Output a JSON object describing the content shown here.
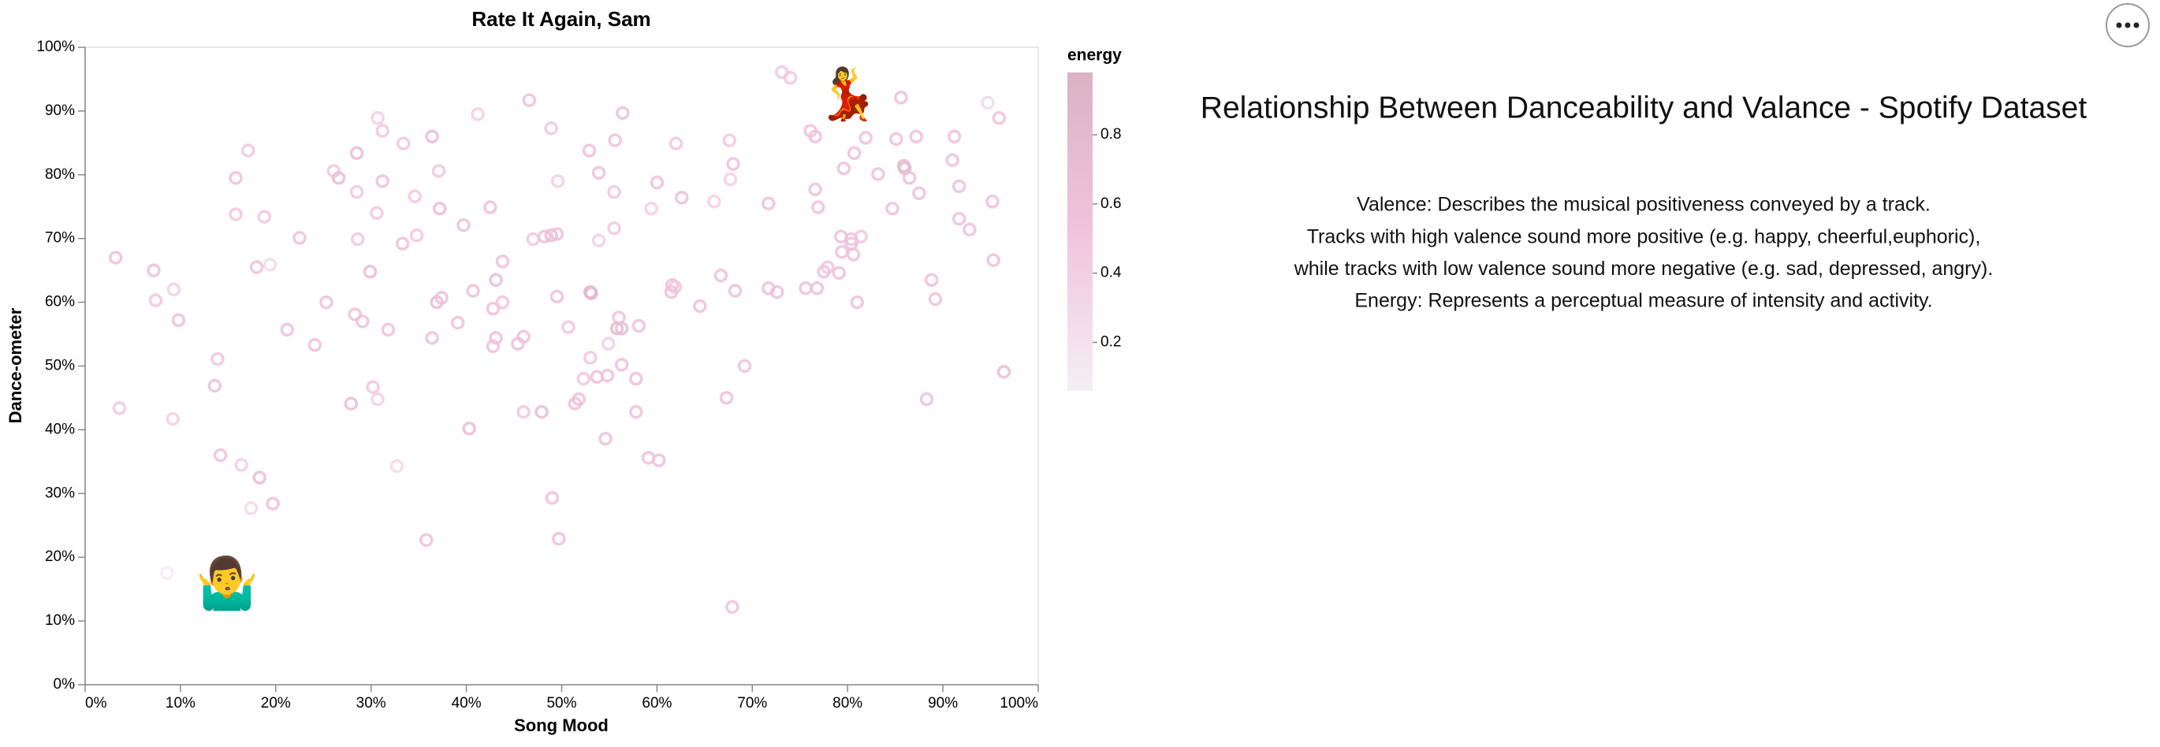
{
  "chart_data": {
    "type": "scatter",
    "title": "Rate It Again, Sam",
    "x_label": "Song Mood",
    "y_label": "Dance-ometer",
    "xlim": [
      0,
      100
    ],
    "ylim": [
      0,
      100
    ],
    "xticks": [
      {
        "value": 0,
        "label": "0%"
      },
      {
        "value": 10,
        "label": "10%"
      },
      {
        "value": 20,
        "label": "20%"
      },
      {
        "value": 30,
        "label": "30%"
      },
      {
        "value": 40,
        "label": "40%"
      },
      {
        "value": 50,
        "label": "50%"
      },
      {
        "value": 60,
        "label": "60%"
      },
      {
        "value": 70,
        "label": "70%"
      },
      {
        "value": 80,
        "label": "80%"
      },
      {
        "value": 90,
        "label": "90%"
      },
      {
        "value": 100,
        "label": "100%"
      }
    ],
    "yticks": [
      {
        "value": 0,
        "label": "0%"
      },
      {
        "value": 10,
        "label": "10%"
      },
      {
        "value": 20,
        "label": "20%"
      },
      {
        "value": 30,
        "label": "30%"
      },
      {
        "value": 40,
        "label": "40%"
      },
      {
        "value": 50,
        "label": "50%"
      },
      {
        "value": 60,
        "label": "60%"
      },
      {
        "value": 70,
        "label": "70%"
      },
      {
        "value": 80,
        "label": "80%"
      },
      {
        "value": 90,
        "label": "90%"
      },
      {
        "value": 100,
        "label": "100%"
      }
    ],
    "grid": false,
    "x": [
      3.2,
      3.6,
      7.2,
      7.4,
      9.3,
      9.8,
      9.2,
      8.6,
      13.9,
      13.6,
      14.2,
      15.8,
      15.8,
      17.1,
      18.8,
      18.0,
      19.4,
      16.4,
      18.3,
      17.4,
      19.7,
      21.2,
      22.5,
      24.1,
      25.3,
      26.1,
      26.6,
      28.5,
      28.5,
      28.6,
      28.3,
      29.1,
      27.9,
      29.9,
      30.7,
      31.2,
      31.2,
      30.6,
      31.8,
      30.2,
      30.7,
      32.7,
      33.4,
      33.3,
      34.6,
      34.8,
      36.4,
      37.1,
      37.2,
      37.4,
      36.9,
      36.4,
      35.8,
      39.1,
      39.7,
      41.2,
      40.7,
      40.3,
      42.5,
      43.1,
      42.8,
      43.1,
      42.8,
      43.8,
      43.8,
      45.4,
      46.0,
      46.0,
      46.6,
      47.0,
      47.9,
      48.2,
      48.9,
      48.9,
      49.5,
      49.6,
      49.5,
      49.0,
      49.7,
      50.7,
      51.4,
      51.8,
      52.3,
      52.9,
      53.0,
      53.1,
      53.0,
      53.9,
      53.9,
      53.7,
      54.8,
      54.6,
      54.9,
      55.5,
      55.6,
      55.5,
      56.0,
      55.8,
      56.3,
      56.3,
      56.4,
      57.8,
      58.1,
      57.8,
      59.1,
      60.2,
      59.4,
      60.0,
      61.5,
      61.6,
      61.9,
      62.0,
      62.6,
      64.5,
      66.0,
      66.7,
      67.3,
      67.6,
      67.7,
      67.9,
      68.0,
      68.2,
      69.2,
      71.7,
      71.7,
      72.6,
      73.1,
      74.0,
      75.6,
      76.1,
      76.6,
      76.8,
      76.6,
      76.9,
      77.5,
      77.9,
      79.1,
      79.3,
      79.6,
      79.4,
      80.4,
      80.6,
      80.7,
      80.4,
      81.0,
      81.4,
      81.9,
      83.2,
      84.7,
      85.1,
      85.6,
      85.9,
      86.0,
      86.5,
      87.2,
      87.5,
      88.3,
      88.8,
      89.2,
      91.0,
      91.2,
      91.7,
      91.7,
      92.8,
      94.7,
      95.2,
      95.3,
      95.9,
      96.4
    ],
    "values": [
      67.0,
      43.4,
      65.0,
      60.3,
      62.0,
      57.2,
      41.7,
      17.5,
      51.1,
      46.9,
      36.0,
      79.5,
      73.8,
      83.8,
      73.4,
      65.5,
      65.9,
      34.5,
      32.5,
      27.7,
      28.4,
      55.7,
      70.1,
      53.3,
      60.0,
      80.6,
      79.5,
      83.4,
      77.3,
      69.9,
      58.1,
      57.0,
      44.1,
      64.8,
      88.9,
      86.9,
      79.0,
      74.0,
      55.7,
      46.7,
      44.8,
      34.3,
      84.9,
      69.2,
      76.6,
      70.5,
      86.0,
      80.6,
      74.7,
      60.7,
      60.0,
      54.4,
      22.7,
      56.8,
      72.1,
      89.5,
      61.8,
      40.2,
      74.9,
      63.5,
      59.0,
      54.4,
      53.1,
      66.4,
      60.0,
      53.5,
      54.6,
      42.8,
      91.7,
      69.9,
      42.8,
      70.3,
      87.3,
      70.5,
      70.7,
      79.0,
      60.9,
      29.3,
      22.9,
      56.1,
      44.1,
      44.8,
      48.0,
      83.8,
      61.6,
      61.4,
      51.3,
      80.3,
      69.7,
      48.3,
      48.5,
      38.6,
      53.5,
      77.3,
      85.4,
      71.6,
      57.6,
      55.9,
      55.9,
      50.2,
      89.7,
      48.0,
      56.3,
      42.8,
      35.6,
      35.2,
      74.7,
      78.8,
      61.6,
      62.7,
      62.4,
      84.9,
      76.4,
      59.4,
      75.8,
      64.2,
      45.0,
      85.4,
      79.3,
      12.2,
      81.7,
      61.8,
      50.0,
      75.5,
      62.2,
      61.6,
      96.1,
      95.2,
      62.2,
      86.9,
      86.0,
      62.2,
      77.7,
      74.9,
      64.8,
      65.5,
      64.6,
      70.3,
      81.0,
      67.9,
      69.9,
      67.5,
      83.4,
      69.2,
      60.0,
      70.3,
      85.8,
      80.1,
      74.7,
      85.6,
      92.1,
      81.4,
      81.0,
      79.5,
      86.0,
      77.1,
      44.8,
      63.5,
      60.5,
      82.3,
      86.0,
      78.2,
      73.1,
      71.4,
      91.3,
      75.8,
      66.6,
      88.9,
      49.1
    ],
    "energy": [
      0.6,
      0.5,
      0.6,
      0.5,
      0.4,
      0.6,
      0.4,
      0.1,
      0.5,
      0.6,
      0.6,
      0.6,
      0.5,
      0.5,
      0.5,
      0.6,
      0.3,
      0.4,
      0.7,
      0.3,
      0.6,
      0.6,
      0.6,
      0.6,
      0.6,
      0.5,
      0.7,
      0.7,
      0.5,
      0.5,
      0.6,
      0.6,
      0.7,
      0.7,
      0.4,
      0.5,
      0.6,
      0.5,
      0.6,
      0.5,
      0.4,
      0.3,
      0.5,
      0.6,
      0.5,
      0.5,
      0.7,
      0.5,
      0.7,
      0.6,
      0.7,
      0.6,
      0.6,
      0.6,
      0.6,
      0.4,
      0.6,
      0.7,
      0.6,
      0.7,
      0.6,
      0.6,
      0.6,
      0.6,
      0.5,
      0.6,
      0.6,
      0.5,
      0.6,
      0.5,
      0.7,
      0.6,
      0.5,
      0.7,
      0.6,
      0.4,
      0.6,
      0.6,
      0.6,
      0.5,
      0.6,
      0.6,
      0.5,
      0.6,
      0.9,
      0.8,
      0.5,
      0.6,
      0.4,
      0.6,
      0.6,
      0.6,
      0.4,
      0.5,
      0.6,
      0.5,
      0.6,
      0.8,
      0.7,
      0.6,
      0.6,
      0.6,
      0.6,
      0.6,
      0.6,
      0.6,
      0.4,
      0.6,
      0.6,
      0.6,
      0.5,
      0.5,
      0.6,
      0.6,
      0.4,
      0.6,
      0.6,
      0.5,
      0.4,
      0.6,
      0.6,
      0.6,
      0.6,
      0.6,
      0.6,
      0.6,
      0.5,
      0.5,
      0.6,
      0.6,
      0.6,
      0.6,
      0.6,
      0.6,
      0.6,
      0.5,
      0.6,
      0.6,
      0.6,
      0.6,
      0.6,
      0.6,
      0.6,
      0.6,
      0.6,
      0.5,
      0.6,
      0.6,
      0.6,
      0.6,
      0.6,
      0.8,
      0.8,
      0.6,
      0.6,
      0.6,
      0.6,
      0.6,
      0.6,
      0.6,
      0.6,
      0.6,
      0.6,
      0.6,
      0.3,
      0.6,
      0.6,
      0.6,
      0.7
    ],
    "color_scale": {
      "title": "energy",
      "range": [
        0.06,
        0.98
      ],
      "ticks": [
        0.2,
        0.4,
        0.6,
        0.8
      ],
      "colors": [
        "#f4eff4",
        "#f1c3dd",
        "#dcb2c4"
      ]
    },
    "annotations": [
      {
        "text": "💃",
        "x": 80.0,
        "y": 92.1
      },
      {
        "text": "🤷‍♂️",
        "x": 14.9,
        "y": 15.3
      }
    ]
  },
  "panel": {
    "heading": "Relationship Between Danceability and Valance - Spotify Dataset",
    "lines": [
      "Valence: Describes the musical positiveness conveyed by a track.",
      "Tracks with high valence sound more positive (e.g. happy, cheerful,euphoric),",
      "while tracks with low valence sound more negative (e.g. sad, depressed, angry).",
      "Energy: Represents a perceptual measure of intensity and activity."
    ]
  }
}
